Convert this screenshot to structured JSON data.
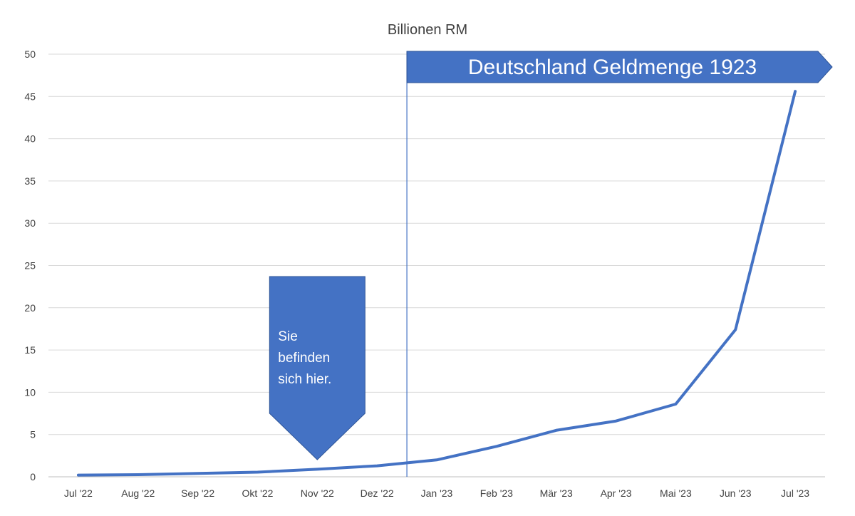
{
  "chart_data": {
    "type": "line",
    "title": "Billionen RM",
    "xlabel": "",
    "ylabel": "",
    "categories": [
      "Jul '22",
      "Aug '22",
      "Sep '22",
      "Okt '22",
      "Nov '22",
      "Dez '22",
      "Jan '23",
      "Feb '23",
      "Mär '23",
      "Apr '23",
      "Mai '23",
      "Jun '23",
      "Jul '23"
    ],
    "series": [
      {
        "values": [
          0.2,
          0.25,
          0.4,
          0.55,
          0.9,
          1.3,
          2.0,
          3.6,
          5.5,
          6.6,
          8.6,
          17.4,
          45.6
        ],
        "color": "#4472c4"
      }
    ],
    "ylim": [
      0,
      50
    ],
    "yticks": [
      0,
      5,
      10,
      15,
      20,
      25,
      30,
      35,
      40,
      45,
      50
    ],
    "grid": true,
    "legend": "none",
    "annotations": {
      "banner": {
        "text": "Deutschland Geldmenge 1923",
        "color": "#4472c4"
      },
      "callout": {
        "lines": [
          "Sie",
          "befinden",
          "sich hier."
        ],
        "color": "#4472c4",
        "points_to": "Nov '22"
      },
      "divider": {
        "between": [
          "Dez '22",
          "Jan '23"
        ],
        "color": "#4472c4"
      }
    }
  }
}
